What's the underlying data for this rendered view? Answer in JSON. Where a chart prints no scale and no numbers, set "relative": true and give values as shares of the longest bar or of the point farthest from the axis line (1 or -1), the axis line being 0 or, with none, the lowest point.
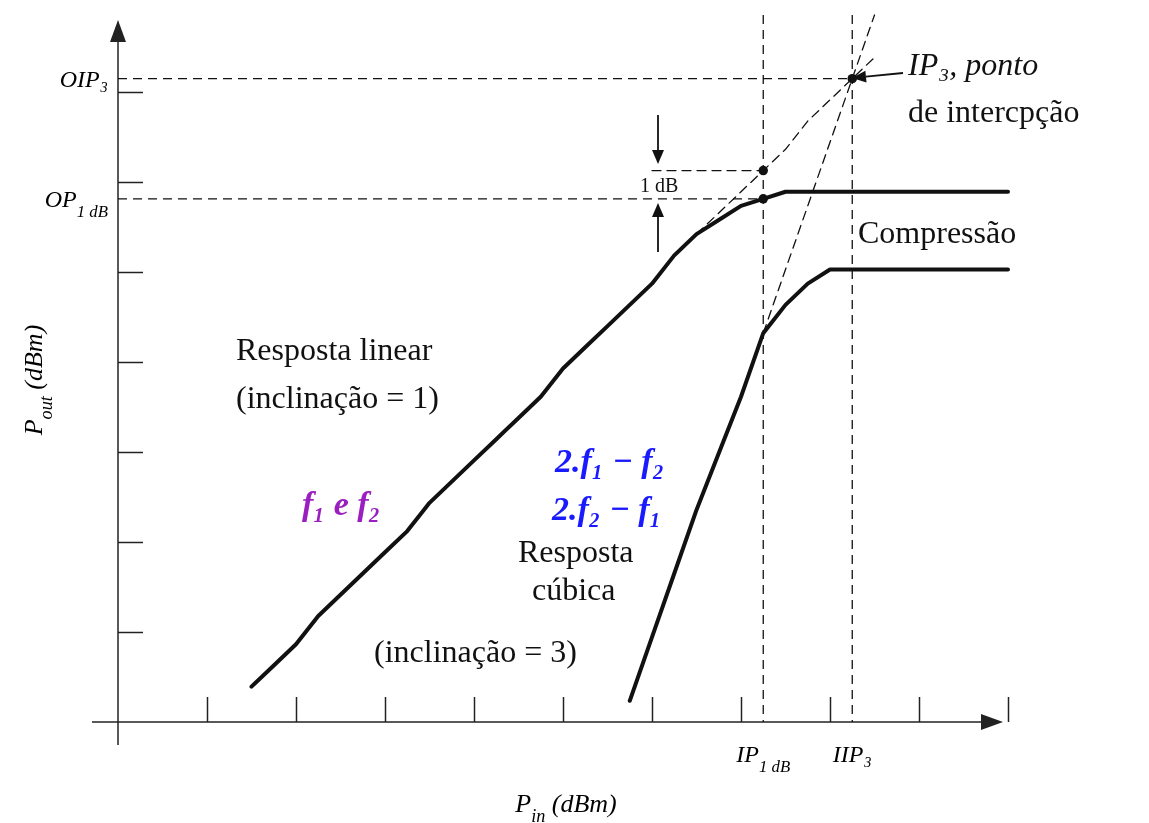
{
  "chart_data": {
    "type": "line",
    "relative": true,
    "xlabel": "P$_{in}$ (dBm)",
    "ylabel": "P$_{out}$ (dBm)",
    "categories": [
      null,
      null,
      null,
      null,
      null,
      null,
      null,
      null,
      null,
      null,
      null,
      null,
      null,
      null,
      null,
      null,
      null,
      null,
      null,
      null,
      null,
      null,
      null,
      null,
      null,
      null,
      null,
      null,
      null,
      "IP$_{1 dB}$",
      null,
      null,
      null,
      "IIP₃",
      null,
      null,
      null,
      null,
      null,
      null,
      null
    ],
    "series": [
      {
        "line_style": "solid",
        "color": "#111111",
        "values": [
          null,
          null,
          null,
          null,
          null,
          null,
          0.05,
          0.08,
          0.11,
          0.15,
          0.18,
          0.21,
          0.24,
          0.27,
          0.31,
          0.34,
          0.37,
          0.4,
          0.43,
          0.46,
          0.5,
          0.53,
          0.56,
          0.59,
          0.62,
          0.66,
          0.69,
          0.71,
          0.73,
          0.74,
          0.75,
          0.75,
          0.75,
          0.75,
          0.75,
          0.75,
          0.75,
          0.75,
          0.75,
          0.75,
          0.75
        ]
      },
      {
        "line_style": "solid",
        "color": "#111111",
        "values": [
          null,
          null,
          null,
          null,
          null,
          null,
          null,
          null,
          null,
          null,
          null,
          null,
          null,
          null,
          null,
          null,
          null,
          null,
          null,
          null,
          null,
          null,
          null,
          0.03,
          0.12,
          0.21,
          0.3,
          0.38,
          0.46,
          0.55,
          0.59,
          0.62,
          0.64,
          0.64,
          0.64,
          0.64,
          0.64,
          0.64,
          0.64,
          0.64,
          0.64
        ]
      },
      {
        "line_style": "dashed",
        "color": "#111111",
        "values": [
          null,
          null,
          null,
          null,
          null,
          null,
          null,
          null,
          null,
          null,
          null,
          null,
          null,
          null,
          null,
          null,
          null,
          null,
          null,
          null,
          null,
          null,
          null,
          null,
          null,
          null,
          0.69,
          0.72,
          0.75,
          0.78,
          0.81,
          0.85,
          0.88,
          0.91,
          0.94,
          null,
          null,
          null,
          null,
          null,
          null
        ]
      },
      {
        "line_style": "dashed",
        "color": "#111111",
        "values": [
          null,
          null,
          null,
          null,
          null,
          null,
          null,
          null,
          null,
          null,
          null,
          null,
          null,
          null,
          null,
          null,
          null,
          null,
          null,
          null,
          null,
          null,
          null,
          null,
          null,
          null,
          null,
          null,
          null,
          0.55,
          0.64,
          0.73,
          0.82,
          0.91,
          1.0,
          null,
          null,
          null,
          null,
          null,
          null
        ]
      },
      {
        "line_style": "dashed",
        "color": "#111111",
        "values": [
          null,
          null,
          null,
          null,
          null,
          null,
          null,
          null,
          null,
          null,
          null,
          null,
          null,
          null,
          null,
          null,
          null,
          null,
          null,
          null,
          null,
          null,
          null,
          null,
          0.78,
          0.78,
          0.78,
          0.78,
          0.78,
          0.78,
          null,
          null,
          null,
          null,
          null,
          null,
          null,
          null,
          null,
          null,
          null
        ]
      },
      {
        "type": "scatter",
        "marker": "circle",
        "color": "#111111",
        "values": [
          null,
          null,
          null,
          null,
          null,
          null,
          null,
          null,
          null,
          null,
          null,
          null,
          null,
          null,
          null,
          null,
          null,
          null,
          null,
          null,
          null,
          null,
          null,
          null,
          null,
          null,
          null,
          null,
          null,
          0.78,
          null,
          null,
          null,
          0.91,
          null,
          null,
          null,
          null,
          null,
          null,
          null
        ]
      },
      {
        "type": "scatter",
        "marker": "circle",
        "color": "#111111",
        "values": [
          null,
          null,
          null,
          null,
          null,
          null,
          null,
          null,
          null,
          null,
          null,
          null,
          null,
          null,
          null,
          null,
          null,
          null,
          null,
          null,
          null,
          null,
          null,
          null,
          null,
          null,
          null,
          null,
          null,
          0.74,
          null,
          null,
          null,
          null,
          null,
          null,
          null,
          null,
          null,
          null,
          null
        ]
      }
    ],
    "ref_lines": [
      {
        "axis": "y",
        "value": 0.91,
        "label": "OIP₃",
        "line_style": "dashed"
      },
      {
        "axis": "y",
        "value": 0.74,
        "label": "OP$_{1 dB}$",
        "line_style": "dashed"
      },
      {
        "axis": "x",
        "value": "IIP₃",
        "line_style": "dashed"
      },
      {
        "axis": "x",
        "value": "IP$_{1 dB}$",
        "line_style": "dashed"
      }
    ],
    "annotations": [
      "IP₃, ponto",
      "de intercpção",
      "Compressão",
      "Resposta linear",
      "(inclinação = 1)",
      "f₁ e f₂",
      "2.f₁ − f₂",
      "2.f₂ − f₁",
      "Resposta",
      "cúbica",
      "(inclinação = 3)",
      "1 dB"
    ]
  }
}
